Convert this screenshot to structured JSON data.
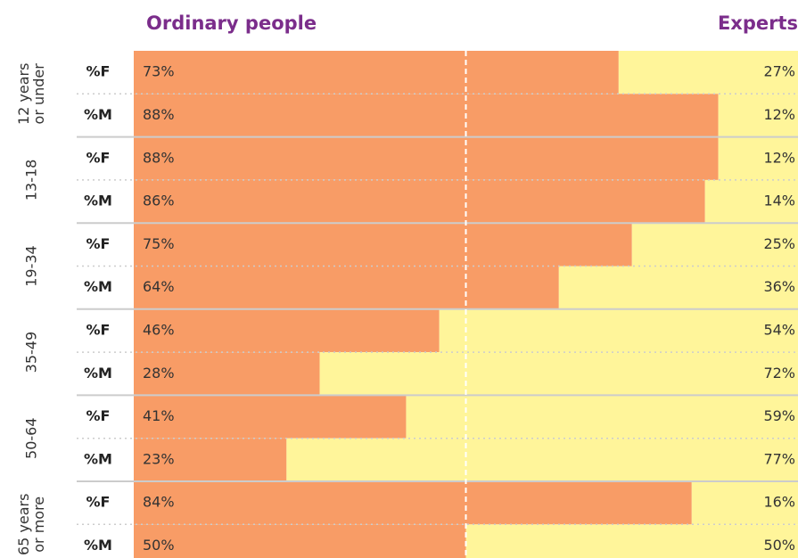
{
  "chart_data": {
    "type": "stacked_bar_horizontal",
    "categories": [
      "%F",
      "%M",
      "%F",
      "%M",
      "%F",
      "%M",
      "%F",
      "%M",
      "%F",
      "%M",
      "%F",
      "%M"
    ],
    "groups": [
      [
        "12 years",
        "or under"
      ],
      [
        "13-18"
      ],
      [
        "19-34"
      ],
      [
        "35-49"
      ],
      [
        "50-64"
      ],
      [
        "65 years",
        "or more"
      ]
    ],
    "series": [
      {
        "name": "Ordinary people",
        "color": "#f89c66",
        "values": [
          73,
          88,
          88,
          86,
          75,
          64,
          46,
          28,
          41,
          23,
          84,
          50
        ],
        "value_labels": [
          "73%",
          "88%",
          "88%",
          "86%",
          "75%",
          "64%",
          "46%",
          "28%",
          "41%",
          "23%",
          "84%",
          "50%"
        ]
      },
      {
        "name": "Experts",
        "color": "#fff59a",
        "values": [
          27,
          12,
          12,
          14,
          25,
          36,
          54,
          72,
          59,
          77,
          16,
          50
        ],
        "value_labels": [
          "27%",
          "12%",
          "12%",
          "14%",
          "25%",
          "36%",
          "54%",
          "72%",
          "59%",
          "77%",
          "16%",
          "50%"
        ]
      }
    ],
    "xlim": [
      0,
      100
    ],
    "reference_line": 50,
    "title_color": "#7b2d8b"
  }
}
